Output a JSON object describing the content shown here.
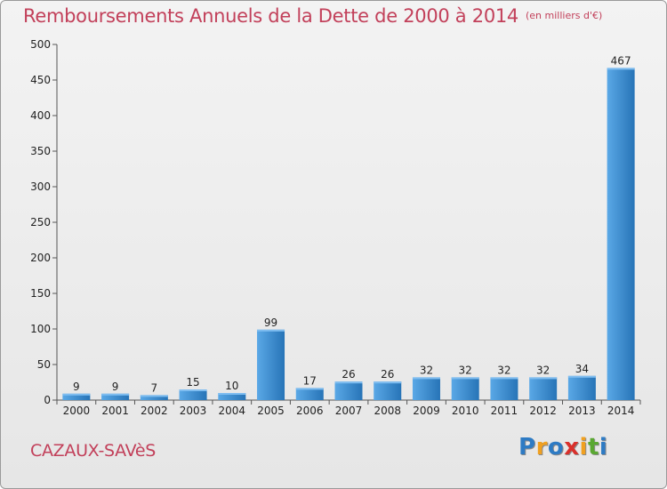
{
  "header": {
    "title": "Remboursements Annuels de la Dette de 2000 à 2014",
    "unit": "(en milliers d'€)"
  },
  "footer": {
    "commune": "CAZAUX-SAVèS",
    "logo": [
      "P",
      "r",
      "o",
      "x",
      "i",
      "t",
      "i"
    ],
    "logo_colors": [
      "#2e7bc4",
      "#f0a020",
      "#2e7bc4",
      "#d9302b",
      "#f0a020",
      "#5aa832",
      "#2e7bc4"
    ]
  },
  "chart_data": {
    "type": "bar",
    "title": "Remboursements Annuels de la Dette de 2000 à 2014",
    "categories": [
      "2000",
      "2001",
      "2002",
      "2003",
      "2004",
      "2005",
      "2006",
      "2007",
      "2008",
      "2009",
      "2010",
      "2011",
      "2012",
      "2013",
      "2014"
    ],
    "values": [
      9,
      9,
      7,
      15,
      10,
      99,
      17,
      26,
      26,
      32,
      32,
      32,
      32,
      34,
      467
    ],
    "data_labels": [
      "9",
      "9",
      "7",
      "15",
      "10",
      "99",
      "17",
      "26",
      "26",
      "32",
      "32",
      "32",
      "32",
      "34",
      "467"
    ],
    "ylim": [
      0,
      500
    ],
    "yticks": [
      0,
      50,
      100,
      150,
      200,
      250,
      300,
      350,
      400,
      450,
      500
    ],
    "grid": false,
    "bar_color": "#3d8fd6",
    "bar_color_dark": "#2774b7"
  }
}
